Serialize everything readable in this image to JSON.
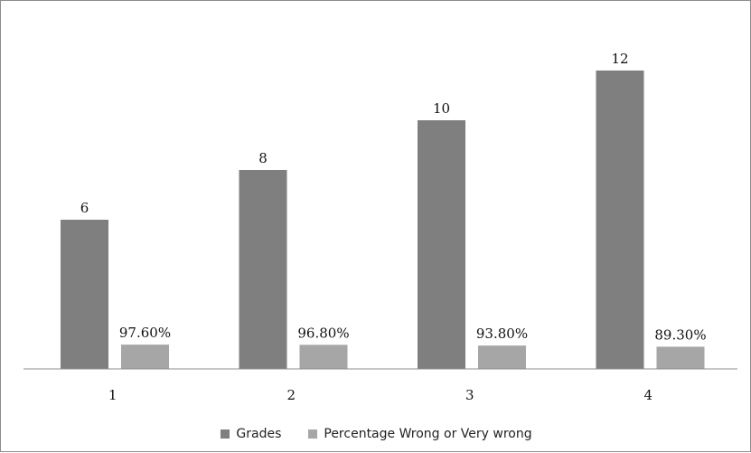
{
  "chart_data": {
    "type": "bar",
    "categories": [
      "1",
      "2",
      "3",
      "4"
    ],
    "series": [
      {
        "name": "Grades",
        "values": [
          6,
          8,
          10,
          12
        ],
        "labels": [
          "6",
          "8",
          "10",
          "12"
        ],
        "color": "#7f7f7f"
      },
      {
        "name": "Percentage Wrong or Very wrong",
        "values": [
          0.976,
          0.968,
          0.938,
          0.893
        ],
        "labels": [
          "97.60%",
          "96.80%",
          "93.80%",
          "89.30%"
        ],
        "color": "#a6a6a6"
      }
    ],
    "title": "",
    "xlabel": "",
    "ylabel": "",
    "ylim": [
      0,
      12
    ],
    "grid": false,
    "legend_position": "bottom"
  }
}
